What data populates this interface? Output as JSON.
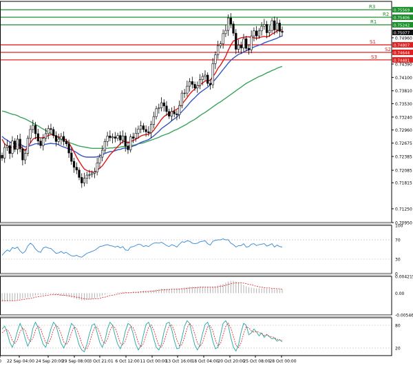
{
  "chart_data": {
    "type": "candlestick",
    "price_panel": {
      "ylim": [
        0.7095,
        0.7575
      ],
      "y_ticks": [
        "0.70950",
        "0.71250",
        "0.71815",
        "0.72085",
        "0.72385",
        "0.72675",
        "0.72960",
        "0.73240",
        "0.73530",
        "0.73810",
        "0.74100",
        "0.74390",
        "0.74675",
        "0.74960"
      ],
      "levels": [
        {
          "label": "R3",
          "value": 0.75569,
          "color": "#1a8f2a",
          "price_label": "0.75569"
        },
        {
          "label": "R2",
          "value": 0.75406,
          "color": "#1a8f2a",
          "price_label": "0.75406"
        },
        {
          "label": "R1",
          "value": 0.75242,
          "color": "#1a8f2a",
          "price_label": "0.75242"
        },
        {
          "label": "S1",
          "value": 0.74807,
          "color": "#e02020",
          "price_label": "0.74807"
        },
        {
          "label": "S2",
          "value": 0.74644,
          "color": "#e02020",
          "price_label": "0.74644"
        },
        {
          "label": "S3",
          "value": 0.74481,
          "color": "#e02020",
          "price_label": "0.74481"
        }
      ],
      "current_price": {
        "value": 0.75077,
        "label": "0.75077",
        "color": "#111111"
      },
      "candles_close": [
        0.7235,
        0.7258,
        0.7262,
        0.7245,
        0.7272,
        0.7254,
        0.7276,
        0.7255,
        0.7231,
        0.7245,
        0.7278,
        0.7297,
        0.7306,
        0.7288,
        0.7272,
        0.7262,
        0.7278,
        0.7288,
        0.7299,
        0.7297,
        0.7284,
        0.7271,
        0.7276,
        0.7282,
        0.7271,
        0.7266,
        0.7246,
        0.7228,
        0.7215,
        0.7209,
        0.7193,
        0.7181,
        0.7191,
        0.7198,
        0.7199,
        0.7202,
        0.7205,
        0.7224,
        0.7237,
        0.7252,
        0.7271,
        0.7283,
        0.7279,
        0.7281,
        0.7278,
        0.7284,
        0.7274,
        0.7283,
        0.7261,
        0.7253,
        0.7281,
        0.7278,
        0.7289,
        0.7298,
        0.7305,
        0.7297,
        0.7292,
        0.729,
        0.7308,
        0.7325,
        0.7342,
        0.7344,
        0.7355,
        0.7348,
        0.7336,
        0.7326,
        0.7336,
        0.7331,
        0.7329,
        0.7349,
        0.7376,
        0.7376,
        0.7391,
        0.7401,
        0.7395,
        0.7387,
        0.7392,
        0.7405,
        0.7412,
        0.7415,
        0.7397,
        0.7394,
        0.744,
        0.7459,
        0.7479,
        0.7483,
        0.7505,
        0.7512,
        0.7539,
        0.7526,
        0.7506,
        0.7471,
        0.748,
        0.7474,
        0.7494,
        0.7473,
        0.747,
        0.75,
        0.7511,
        0.75,
        0.7511,
        0.7521,
        0.7525,
        0.7507,
        0.7512,
        0.7533,
        0.7513,
        0.7528,
        0.751,
        0.7508
      ],
      "ma_red": [
        0.7276,
        0.7266,
        0.7261,
        0.7257,
        0.7259,
        0.726,
        0.7262,
        0.7262,
        0.7256,
        0.7251,
        0.7259,
        0.7268,
        0.7276,
        0.7279,
        0.728,
        0.7279,
        0.7279,
        0.7281,
        0.7284,
        0.7286,
        0.7285,
        0.7282,
        0.7281,
        0.7279,
        0.7277,
        0.7274,
        0.7267,
        0.7259,
        0.7248,
        0.7237,
        0.7228,
        0.7219,
        0.7211,
        0.7208,
        0.7206,
        0.7205,
        0.7204,
        0.7209,
        0.7213,
        0.7218,
        0.7226,
        0.7234,
        0.7242,
        0.7248,
        0.7254,
        0.726,
        0.7266,
        0.7271,
        0.7271,
        0.7268,
        0.7271,
        0.7273,
        0.7276,
        0.7279,
        0.7283,
        0.7285,
        0.7286,
        0.7287,
        0.729,
        0.7295,
        0.7303,
        0.7311,
        0.7319,
        0.7325,
        0.7329,
        0.7332,
        0.7335,
        0.7338,
        0.7341,
        0.7345,
        0.7352,
        0.7359,
        0.7366,
        0.7374,
        0.738,
        0.7385,
        0.739,
        0.7394,
        0.7398,
        0.7402,
        0.7403,
        0.7404,
        0.7412,
        0.7419,
        0.743,
        0.7437,
        0.7446,
        0.7456,
        0.7469,
        0.748,
        0.7489,
        0.7491,
        0.7494,
        0.7496,
        0.7497,
        0.7498,
        0.7498,
        0.7497,
        0.7496,
        0.7495,
        0.7496,
        0.7498,
        0.7499,
        0.7498,
        0.75,
        0.7504,
        0.7507,
        0.7511,
        0.7513,
        0.7513
      ],
      "ma_blue": [
        0.7282,
        0.7277,
        0.7274,
        0.727,
        0.7268,
        0.7266,
        0.7265,
        0.7265,
        0.7262,
        0.7259,
        0.726,
        0.7262,
        0.7264,
        0.7266,
        0.7266,
        0.7265,
        0.7264,
        0.7265,
        0.7266,
        0.7267,
        0.7266,
        0.7266,
        0.7264,
        0.7261,
        0.7259,
        0.7257,
        0.7255,
        0.7253,
        0.725,
        0.7247,
        0.7243,
        0.724,
        0.7238,
        0.7237,
        0.7237,
        0.7237,
        0.7237,
        0.7238,
        0.724,
        0.7242,
        0.7245,
        0.7247,
        0.7249,
        0.7249,
        0.7251,
        0.7253,
        0.7254,
        0.7256,
        0.7257,
        0.7256,
        0.7259,
        0.7261,
        0.7263,
        0.7266,
        0.7269,
        0.7271,
        0.7273,
        0.7275,
        0.7279,
        0.7283,
        0.7288,
        0.7293,
        0.7299,
        0.7303,
        0.7307,
        0.7311,
        0.7316,
        0.732,
        0.7324,
        0.733,
        0.7336,
        0.7342,
        0.7348,
        0.7355,
        0.7361,
        0.7366,
        0.7372,
        0.7377,
        0.7381,
        0.7385,
        0.7389,
        0.7394,
        0.74,
        0.7406,
        0.7413,
        0.742,
        0.7427,
        0.7434,
        0.7441,
        0.7447,
        0.7452,
        0.7456,
        0.746,
        0.7462,
        0.7465,
        0.7468,
        0.747,
        0.7473,
        0.7476,
        0.7478,
        0.748,
        0.7482,
        0.7485,
        0.7487,
        0.7489,
        0.7491,
        0.7493,
        0.7495,
        0.7498,
        0.75
      ],
      "ma_green": [
        0.7337,
        0.7336,
        0.7334,
        0.7332,
        0.733,
        0.7329,
        0.7327,
        0.7324,
        0.7322,
        0.732,
        0.7317,
        0.7314,
        0.7311,
        0.7308,
        0.7305,
        0.7301,
        0.7298,
        0.7295,
        0.7291,
        0.7288,
        0.7285,
        0.7282,
        0.7279,
        0.7276,
        0.7273,
        0.7271,
        0.7269,
        0.7267,
        0.7265,
        0.7263,
        0.7261,
        0.726,
        0.7259,
        0.7258,
        0.7257,
        0.7256,
        0.7256,
        0.7256,
        0.7256,
        0.7256,
        0.7256,
        0.7256,
        0.7257,
        0.7257,
        0.7258,
        0.7258,
        0.7259,
        0.726,
        0.726,
        0.7261,
        0.7262,
        0.7263,
        0.7264,
        0.7266,
        0.7267,
        0.7268,
        0.727,
        0.7272,
        0.7274,
        0.7276,
        0.7278,
        0.728,
        0.7283,
        0.7285,
        0.7287,
        0.7289,
        0.7292,
        0.7295,
        0.7297,
        0.73,
        0.7303,
        0.7306,
        0.7309,
        0.7313,
        0.7316,
        0.7319,
        0.7323,
        0.7327,
        0.7331,
        0.7334,
        0.7338,
        0.7342,
        0.7346,
        0.735,
        0.7354,
        0.7357,
        0.7361,
        0.7365,
        0.7369,
        0.7373,
        0.7377,
        0.7381,
        0.7385,
        0.7389,
        0.7393,
        0.7397,
        0.74,
        0.7403,
        0.7406,
        0.7409,
        0.7412,
        0.7414,
        0.7417,
        0.742,
        0.7422,
        0.7425,
        0.7427,
        0.743,
        0.7432,
        0.7434
      ]
    },
    "rsi_panel": {
      "ylim": [
        0,
        100
      ],
      "y_ticks": [
        "100",
        "70",
        "30",
        "0"
      ],
      "values": [
        38,
        44,
        49,
        46,
        54,
        52,
        55,
        47,
        42,
        46,
        57,
        63,
        59,
        51,
        46,
        44,
        53,
        55,
        53,
        52,
        47,
        42,
        43,
        46,
        42,
        44,
        40,
        37,
        36,
        38,
        35,
        34,
        38,
        42,
        44,
        46,
        48,
        52,
        56,
        57,
        59,
        60,
        58,
        57,
        55,
        57,
        53,
        56,
        49,
        48,
        55,
        56,
        58,
        61,
        60,
        56,
        58,
        56,
        60,
        63,
        64,
        63,
        65,
        62,
        58,
        56,
        60,
        58,
        55,
        61,
        66,
        65,
        68,
        67,
        63,
        62,
        63,
        66,
        67,
        68,
        62,
        59,
        67,
        69,
        70,
        70,
        72,
        70,
        70,
        63,
        60,
        55,
        58,
        58,
        62,
        55,
        56,
        61,
        62,
        58,
        60,
        61,
        62,
        57,
        59,
        62,
        55,
        59,
        56,
        55
      ]
    },
    "macd_panel": {
      "y_ticks": [
        "0.004215",
        "0.00",
        "-0.005469"
      ],
      "histogram": [
        -0.0022,
        -0.0021,
        -0.002,
        -0.0019,
        -0.0019,
        -0.0018,
        -0.0016,
        -0.0015,
        -0.0013,
        -0.0012,
        -0.0011,
        -0.001,
        -0.0008,
        -0.0006,
        -0.0005,
        -0.0004,
        -0.0004,
        -0.0003,
        -0.0002,
        -0.0002,
        -0.0003,
        -0.0004,
        -0.0005,
        -0.0006,
        -0.0007,
        -0.0008,
        -0.0009,
        -0.0011,
        -0.0013,
        -0.0015,
        -0.0016,
        -0.0018,
        -0.0018,
        -0.0017,
        -0.0016,
        -0.0015,
        -0.0013,
        -0.0011,
        -0.0009,
        -0.0006,
        -0.0004,
        -0.0002,
        -0.0001,
        0.0,
        0.0001,
        0.0002,
        0.0002,
        0.0003,
        0.0003,
        0.0002,
        0.0002,
        0.0003,
        0.0003,
        0.0004,
        0.0005,
        0.0006,
        0.0006,
        0.0006,
        0.0007,
        0.0008,
        0.0009,
        0.001,
        0.0011,
        0.0011,
        0.0011,
        0.0011,
        0.0011,
        0.0011,
        0.0011,
        0.0012,
        0.0013,
        0.0014,
        0.0015,
        0.0016,
        0.0016,
        0.0016,
        0.0016,
        0.0016,
        0.0016,
        0.0016,
        0.0015,
        0.0014,
        0.0015,
        0.0017,
        0.0019,
        0.0021,
        0.0023,
        0.0026,
        0.0029,
        0.0031,
        0.0031,
        0.0029,
        0.0026,
        0.0023,
        0.002,
        0.0017,
        0.0015,
        0.0014,
        0.0013,
        0.0012,
        0.0012,
        0.0012,
        0.0012,
        0.0011,
        0.0011,
        0.0011,
        0.001,
        0.001,
        0.001,
        0.0009
      ],
      "signal": [
        -0.0018,
        -0.0019,
        -0.0019,
        -0.0019,
        -0.0019,
        -0.0019,
        -0.0018,
        -0.0017,
        -0.0016,
        -0.0015,
        -0.0014,
        -0.0013,
        -0.0012,
        -0.001,
        -0.0009,
        -0.0008,
        -0.0007,
        -0.0006,
        -0.0005,
        -0.0004,
        -0.0004,
        -0.0004,
        -0.0004,
        -0.0005,
        -0.0005,
        -0.0006,
        -0.0007,
        -0.0008,
        -0.0009,
        -0.001,
        -0.0011,
        -0.0013,
        -0.0014,
        -0.0015,
        -0.0015,
        -0.0015,
        -0.0014,
        -0.0014,
        -0.0013,
        -0.0011,
        -0.001,
        -0.0008,
        -0.0006,
        -0.0005,
        -0.0004,
        -0.0002,
        -0.0001,
        0.0,
        0.0001,
        0.0001,
        0.0001,
        0.0002,
        0.0002,
        0.0002,
        0.0003,
        0.0003,
        0.0004,
        0.0004,
        0.0005,
        0.0005,
        0.0006,
        0.0007,
        0.0008,
        0.0008,
        0.0009,
        0.0009,
        0.001,
        0.001,
        0.001,
        0.001,
        0.0011,
        0.0011,
        0.0012,
        0.0013,
        0.0013,
        0.0014,
        0.0014,
        0.0015,
        0.0015,
        0.0015,
        0.0015,
        0.0015,
        0.0015,
        0.0015,
        0.0016,
        0.0017,
        0.0018,
        0.002,
        0.0022,
        0.0024,
        0.0025,
        0.0026,
        0.0026,
        0.0026,
        0.0025,
        0.0024,
        0.0022,
        0.0021,
        0.0019,
        0.0017,
        0.0016,
        0.0015,
        0.0014,
        0.0013,
        0.0013,
        0.0012,
        0.0012,
        0.0011,
        0.0011,
        0.001
      ]
    },
    "stoch_panel": {
      "y_ticks": [
        "80",
        "20"
      ],
      "ylim": [
        0,
        100
      ],
      "k": [
        70,
        78,
        60,
        35,
        22,
        40,
        65,
        85,
        70,
        45,
        25,
        40,
        72,
        88,
        75,
        50,
        30,
        22,
        45,
        70,
        88,
        80,
        55,
        32,
        20,
        35,
        62,
        85,
        78,
        52,
        28,
        15,
        10,
        30,
        58,
        80,
        84,
        60,
        35,
        22,
        40,
        70,
        88,
        80,
        52,
        30,
        18,
        35,
        65,
        85,
        80,
        58,
        30,
        15,
        25,
        55,
        82,
        88,
        72,
        45,
        22,
        15,
        30,
        62,
        85,
        88,
        70,
        40,
        18,
        20,
        48,
        78,
        92,
        85,
        55,
        28,
        15,
        28,
        58,
        82,
        88,
        68,
        38,
        18,
        22,
        55,
        85,
        92,
        80,
        48,
        22,
        12,
        28,
        62,
        85,
        80,
        55,
        60,
        70,
        62,
        52,
        60,
        48,
        56,
        50,
        44,
        46,
        38,
        42,
        36
      ],
      "d": [
        60,
        66,
        69,
        58,
        40,
        32,
        42,
        63,
        73,
        67,
        47,
        37,
        46,
        67,
        78,
        71,
        52,
        34,
        32,
        46,
        68,
        80,
        74,
        56,
        36,
        29,
        39,
        60,
        75,
        72,
        53,
        32,
        18,
        18,
        33,
        56,
        74,
        75,
        60,
        39,
        32,
        44,
        66,
        79,
        73,
        54,
        33,
        28,
        39,
        62,
        77,
        74,
        56,
        34,
        23,
        32,
        54,
        75,
        81,
        68,
        46,
        27,
        22,
        36,
        59,
        78,
        81,
        66,
        42,
        26,
        29,
        49,
        73,
        85,
        77,
        56,
        33,
        24,
        34,
        56,
        76,
        79,
        65,
        41,
        26,
        32,
        54,
        77,
        86,
        73,
        50,
        27,
        21,
        34,
        58,
        76,
        73,
        65,
        62,
        64,
        61,
        58,
        53,
        55,
        51,
        50,
        47,
        43,
        42,
        40
      ]
    },
    "x_tick_labels": [
      "Sep 16:00",
      "22 Sep 04:00",
      "24 Sep 20:00",
      "29 Sep 08:00",
      "3 Oct 21:01",
      "6 Oct 12:00",
      "11 Oct 00:00",
      "13 Oct 16:00",
      "18 Oct 04:00",
      "20 Oct 20:00",
      "25 Oct 08:00",
      "28 Oct 00:00"
    ]
  }
}
